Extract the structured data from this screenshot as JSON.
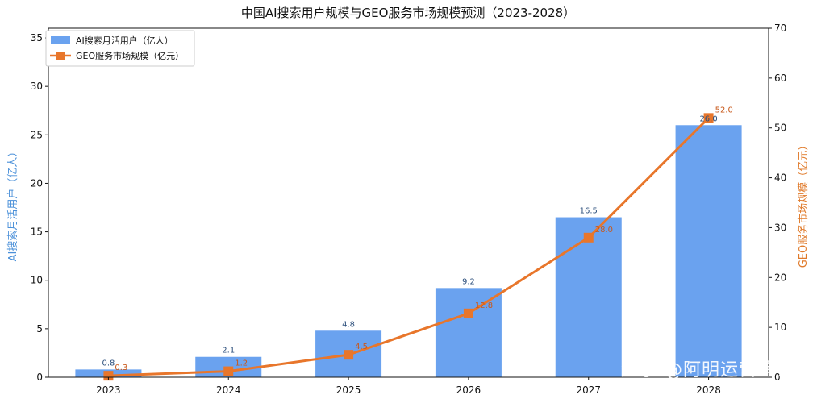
{
  "chart_data": {
    "type": "bar+line",
    "title": "中国AI搜索用户规模与GEO服务市场规模预测（2023-2028）",
    "categories": [
      "2023",
      "2024",
      "2025",
      "2026",
      "2027",
      "2028"
    ],
    "series": [
      {
        "name": "AI搜索月活用户（亿人）",
        "type": "bar",
        "axis": "left",
        "values": [
          0.8,
          2.1,
          4.8,
          9.2,
          16.5,
          26.0
        ],
        "labels": [
          "0.8",
          "2.1",
          "4.8",
          "9.2",
          "16.5",
          "26.0"
        ]
      },
      {
        "name": "GEO服务市场规模（亿元）",
        "type": "line",
        "axis": "right",
        "values": [
          0.3,
          1.2,
          4.5,
          12.8,
          28.0,
          52.0
        ],
        "labels": [
          "0.3",
          "1.2",
          "4.5",
          "12.8",
          "28.0",
          "52.0"
        ]
      }
    ],
    "ylabel_left": "AI搜索月活用户（亿人）",
    "ylabel_right": "GEO服务市场规模（亿元）",
    "ylim_left": [
      0,
      36
    ],
    "ylim_right": [
      0,
      70
    ],
    "yticks_left": [
      "0",
      "5",
      "10",
      "15",
      "20",
      "25",
      "30",
      "35"
    ],
    "yticks_right": [
      "0",
      "10",
      "20",
      "30",
      "40",
      "50",
      "60",
      "70"
    ],
    "legend_position": "top-left",
    "grid": false,
    "colors": {
      "bar": "#6aa2ef",
      "line": "#e8762b"
    }
  },
  "watermark": "知乎 @阿明运营笔记"
}
